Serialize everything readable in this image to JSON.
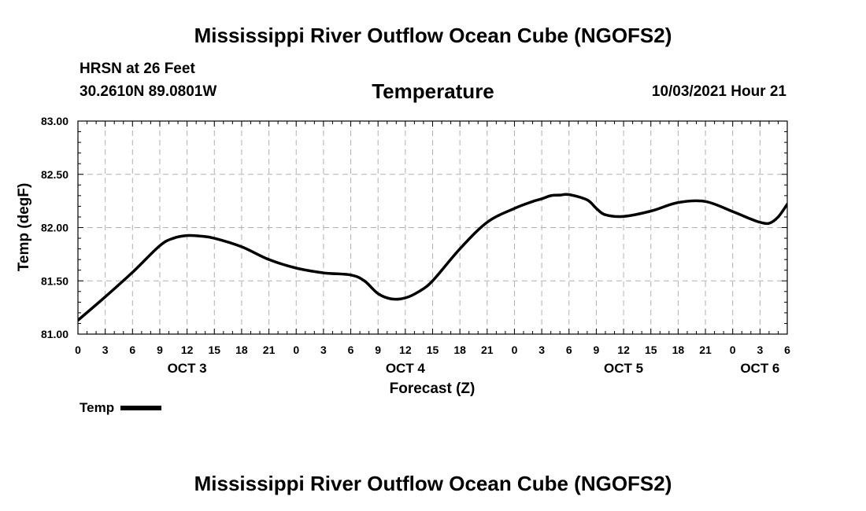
{
  "header": {
    "title": "Mississippi River Outflow Ocean Cube (NGOFS2)",
    "station": "HRSN at 26 Feet",
    "coords": "30.2610N  89.0801W",
    "variable": "Temperature",
    "datetime": "10/03/2021 Hour 21"
  },
  "footer": {
    "title": "Mississippi River Outflow Ocean Cube (NGOFS2)"
  },
  "legend": {
    "label": "Temp"
  },
  "colors": {
    "line": "#000000",
    "grid": "#b0b0b0"
  },
  "chart_data": {
    "type": "line",
    "title": "Temperature",
    "xlabel": "Forecast (Z)",
    "ylabel": "Temp (degF)",
    "xlim": [
      0,
      78
    ],
    "ylim": [
      81.0,
      83.0
    ],
    "x_unit": "hours since OCT 3 00Z",
    "x_tick_values": [
      0,
      3,
      6,
      9,
      12,
      15,
      18,
      21,
      24,
      27,
      30,
      33,
      36,
      39,
      42,
      45,
      48,
      51,
      54,
      57,
      60,
      63,
      66,
      69,
      72,
      75,
      78
    ],
    "x_tick_labels": [
      "0",
      "3",
      "6",
      "9",
      "12",
      "15",
      "18",
      "21",
      "0",
      "3",
      "6",
      "9",
      "12",
      "15",
      "18",
      "21",
      "0",
      "3",
      "6",
      "9",
      "12",
      "15",
      "18",
      "21",
      "0",
      "3",
      "6"
    ],
    "y_tick_values": [
      81.0,
      81.5,
      82.0,
      82.5,
      83.0
    ],
    "y_tick_labels": [
      "81.00",
      "81.50",
      "82.00",
      "82.50",
      "83.00"
    ],
    "day_labels": [
      {
        "x": 12,
        "label": "OCT 3"
      },
      {
        "x": 36,
        "label": "OCT 4"
      },
      {
        "x": 60,
        "label": "OCT 5"
      },
      {
        "x": 75,
        "label": "OCT 6"
      }
    ],
    "grid": true,
    "legend_position": "bottom-left",
    "series": [
      {
        "name": "Temp",
        "x": [
          0,
          3,
          6,
          9,
          10.5,
          12,
          13.5,
          15,
          18,
          21,
          24,
          27,
          30,
          31.5,
          33,
          34.5,
          36,
          37.5,
          39,
          42,
          45,
          48,
          50,
          51,
          52,
          53,
          54,
          56,
          57,
          58,
          60,
          63,
          66,
          69,
          72,
          74,
          75,
          76,
          77,
          78
        ],
        "y": [
          81.13,
          81.35,
          81.58,
          81.83,
          81.9,
          81.925,
          81.92,
          81.9,
          81.82,
          81.7,
          81.62,
          81.575,
          81.555,
          81.5,
          81.38,
          81.33,
          81.34,
          81.4,
          81.5,
          81.8,
          82.05,
          82.18,
          82.245,
          82.27,
          82.3,
          82.305,
          82.31,
          82.26,
          82.18,
          82.12,
          82.105,
          82.155,
          82.235,
          82.245,
          82.15,
          82.08,
          82.05,
          82.04,
          82.1,
          82.22
        ]
      }
    ]
  }
}
